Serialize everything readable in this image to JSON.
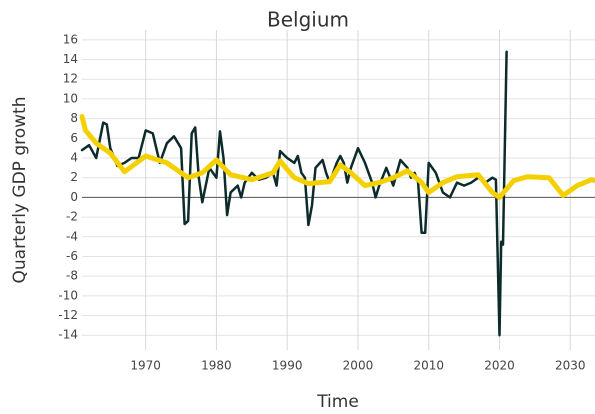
{
  "chart_data": {
    "type": "line",
    "title": "Belgium",
    "x_label": "Time",
    "y_label": "Quarterly GDP growth",
    "xlim": [
      1961,
      2033.5
    ],
    "ylim": [
      -15.5,
      17
    ],
    "xticks": [
      1970,
      1980,
      1990,
      2000,
      2010,
      2020,
      2030
    ],
    "yticks": [
      -14,
      -12,
      -10,
      -8,
      -6,
      -4,
      -2,
      0,
      2,
      4,
      6,
      8,
      10,
      12,
      14,
      16
    ],
    "grid": true,
    "series": [
      {
        "color": "#0d2b2b",
        "x": [
          1961,
          1962,
          1963,
          1964,
          1964.5,
          1965,
          1966,
          1967,
          1968,
          1969,
          1970,
          1971,
          1972,
          1973,
          1974,
          1975,
          1975.5,
          1976,
          1976.5,
          1977,
          1977.5,
          1978,
          1979,
          1980,
          1980.5,
          1981,
          1981.5,
          1982,
          1983,
          1983.5,
          1984,
          1985,
          1986,
          1987,
          1988,
          1988.5,
          1989,
          1990,
          1991,
          1991.5,
          1992,
          1992.5,
          1993,
          1993.5,
          1994,
          1995,
          1995.5,
          1996,
          1997,
          1997.5,
          1998,
          1998.5,
          1999,
          2000,
          2001,
          2002,
          2002.5,
          2003,
          2004,
          2005,
          2006,
          2007,
          2007.5,
          2008,
          2008.5,
          2009,
          2009.5,
          2010,
          2011,
          2012,
          2013,
          2014,
          2015,
          2016,
          2017,
          2018,
          2019,
          2019.5,
          2020,
          2020.25,
          2020.5,
          2021
        ],
        "values": [
          4.8,
          5.3,
          4.0,
          7.6,
          7.4,
          5,
          3.2,
          3.5,
          4.0,
          4.0,
          6.8,
          6.5,
          3.5,
          5.5,
          6.2,
          5.0,
          -2.7,
          -2.4,
          6.5,
          7.1,
          2,
          -0.5,
          3.0,
          2,
          6.7,
          4,
          -1.8,
          0.5,
          1.2,
          0,
          1.5,
          2.5,
          1.8,
          2.0,
          2.5,
          1.2,
          4.7,
          4,
          3.5,
          4.2,
          2.5,
          2,
          -2.8,
          -0.8,
          3,
          3.8,
          2.5,
          1.5,
          3.5,
          4.2,
          3.5,
          1.5,
          3.0,
          5,
          3.5,
          1.5,
          0,
          1.2,
          3.0,
          1.2,
          3.8,
          3,
          2.0,
          2.5,
          1.5,
          -3.6,
          -3.6,
          3.5,
          2.5,
          0.5,
          0,
          1.5,
          1.2,
          1.5,
          2.0,
          1.5,
          2.0,
          1.8,
          -14,
          -4.5,
          -4.8,
          14.8
        ]
      },
      {
        "color": "#f5d000",
        "x": [
          1961,
          1961.5,
          1963,
          1965,
          1967,
          1970,
          1973,
          1976,
          1978,
          1980,
          1982,
          1985,
          1988,
          1989,
          1991,
          1993,
          1996,
          1997.5,
          1999,
          2001,
          2003,
          2005,
          2007,
          2009,
          2010,
          2012,
          2014,
          2017,
          2019,
          2020,
          2022,
          2024,
          2027,
          2029,
          2031,
          2033,
          2033.5
        ],
        "values": [
          8.2,
          6.8,
          5.5,
          4.5,
          2.6,
          4.2,
          3.5,
          2.0,
          2.5,
          3.8,
          2.3,
          1.8,
          2.5,
          3.7,
          2.0,
          1.4,
          1.6,
          3.3,
          2.5,
          1.2,
          1.5,
          2.0,
          2.7,
          1.5,
          0.5,
          1.5,
          2.1,
          2.3,
          0.5,
          0,
          1.7,
          2.1,
          2.0,
          0.2,
          1.2,
          1.8,
          1.7
        ]
      }
    ]
  }
}
